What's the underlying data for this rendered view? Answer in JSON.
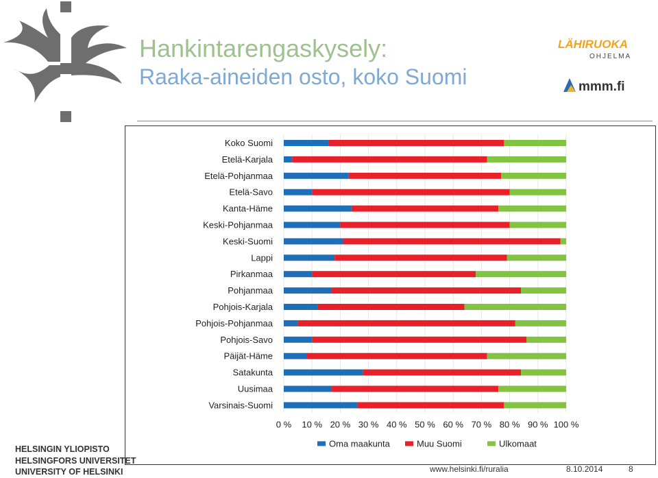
{
  "slide": {
    "title_line1": "Hankintarengaskysely:",
    "title_line2": "Raaka-aineiden osto, koko Suomi",
    "university_lines": [
      "HELSINGIN YLIOPISTO",
      "HELSINGFORS UNIVERSITET",
      "UNIVERSITY OF HELSINKI"
    ],
    "url": "www.helsinki.fi/ruralia",
    "date": "8.10.2014",
    "page": "8",
    "logo1_text": "LÄHIRUOKA",
    "logo1_sub": "OHJELMA",
    "logo2_text": "mmm.fi"
  },
  "chart_data": {
    "type": "bar",
    "orientation": "horizontal",
    "stacked": "100%",
    "categories": [
      "Koko Suomi",
      "Etelä-Karjala",
      "Etelä-Pohjanmaa",
      "Etelä-Savo",
      "Kanta-Häme",
      "Keski-Pohjanmaa",
      "Keski-Suomi",
      "Lappi",
      "Pirkanmaa",
      "Pohjanmaa",
      "Pohjois-Karjala",
      "Pohjois-Pohjanmaa",
      "Pohjois-Savo",
      "Päijät-Häme",
      "Satakunta",
      "Uusimaa",
      "Varsinais-Suomi"
    ],
    "series": [
      {
        "name": "Oma maakunta",
        "color": "#1f6eb8",
        "values": [
          16,
          3,
          23,
          10,
          24,
          20,
          21,
          18,
          10,
          17,
          12,
          5,
          10,
          8,
          28,
          17,
          26
        ]
      },
      {
        "name": "Muu Suomi",
        "color": "#e8202a",
        "values": [
          62,
          69,
          54,
          70,
          52,
          60,
          77,
          61,
          58,
          67,
          52,
          77,
          76,
          64,
          56,
          59,
          52
        ]
      },
      {
        "name": "Ulkomaat",
        "color": "#82c341",
        "values": [
          22,
          28,
          23,
          20,
          24,
          20,
          2,
          21,
          32,
          16,
          36,
          18,
          14,
          28,
          16,
          24,
          22
        ]
      }
    ],
    "xlim": [
      0,
      100
    ],
    "xticks": [
      "0 %",
      "10 %",
      "20 %",
      "30 %",
      "40 %",
      "50 %",
      "60 %",
      "70 %",
      "80 %",
      "90 %",
      "100 %"
    ],
    "grid": true,
    "legend": "bottom"
  }
}
